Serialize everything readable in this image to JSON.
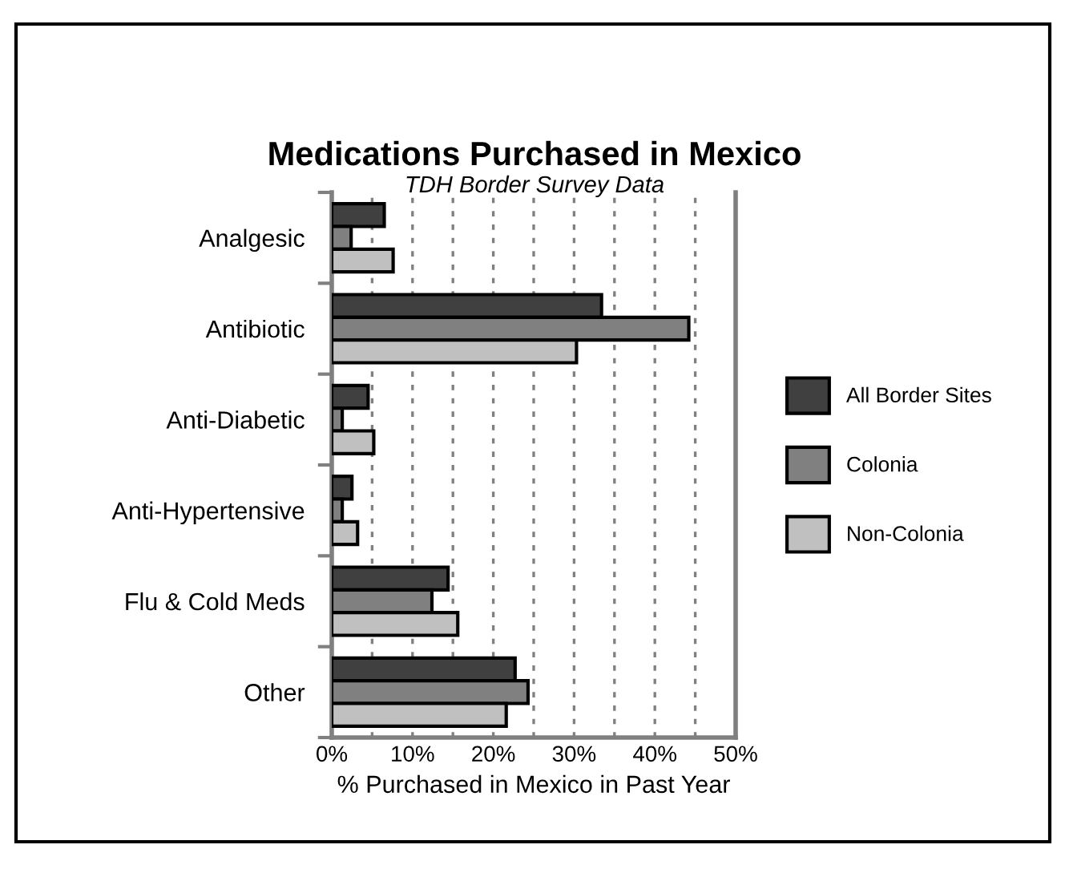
{
  "chart_data": {
    "type": "bar",
    "orientation": "horizontal",
    "title": "Medications Purchased in Mexico",
    "subtitle": "TDH Border Survey Data",
    "xlabel": "% Purchased in Mexico in Past Year",
    "categories": [
      "Analgesic",
      "Antibiotic",
      "Anti-Diabetic",
      "Anti-Hypertensive",
      "Flu & Cold Meds",
      "Other"
    ],
    "series": [
      {
        "name": "All Border Sites",
        "color": "#404040",
        "values": [
          6.5,
          33.4,
          4.5,
          2.5,
          14.4,
          22.7
        ]
      },
      {
        "name": "Colonia",
        "color": "#808080",
        "values": [
          2.4,
          44.2,
          1.3,
          1.3,
          12.4,
          24.3
        ]
      },
      {
        "name": "Non-Colonia",
        "color": "#c0c0c0",
        "values": [
          7.6,
          30.3,
          5.2,
          3.2,
          15.6,
          21.6
        ]
      }
    ],
    "xlim": [
      0,
      50
    ],
    "xticks": [
      {
        "value": 0,
        "label": "0%"
      },
      {
        "value": 5,
        "label": null
      },
      {
        "value": 10,
        "label": "10%"
      },
      {
        "value": 15,
        "label": null
      },
      {
        "value": 20,
        "label": "20%"
      },
      {
        "value": 25,
        "label": null
      },
      {
        "value": 30,
        "label": "30%"
      },
      {
        "value": 35,
        "label": null
      },
      {
        "value": 40,
        "label": "40%"
      },
      {
        "value": 45,
        "label": null
      },
      {
        "value": 50,
        "label": "50%"
      }
    ],
    "grid": "x",
    "legend": "right"
  }
}
